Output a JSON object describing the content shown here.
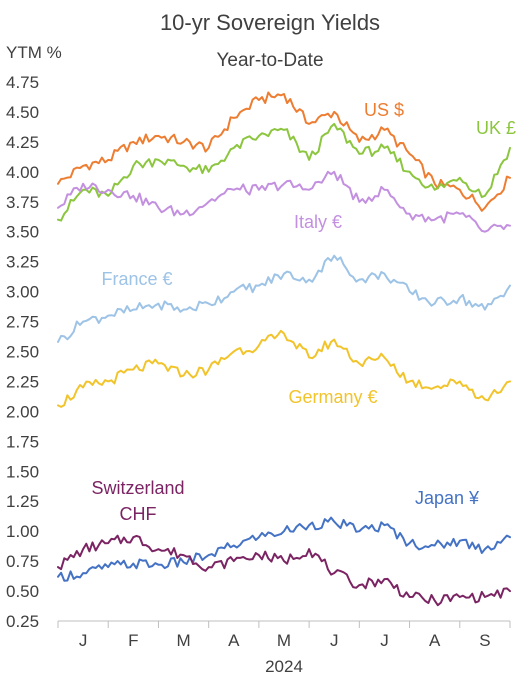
{
  "chart_data": {
    "type": "line",
    "title": "10-yr Sovereign Yields",
    "subtitle": "Year-to-Date",
    "ylabel": "YTM %",
    "xlabel": "2024",
    "ylim": [
      0.25,
      4.75
    ],
    "yticks": [
      "4.75",
      "4.50",
      "4.25",
      "4.00",
      "3.75",
      "3.50",
      "3.25",
      "3.00",
      "2.75",
      "2.50",
      "2.25",
      "2.00",
      "1.75",
      "1.50",
      "1.25",
      "1.00",
      "0.75",
      "0.50",
      "0.25"
    ],
    "ytick_values": [
      4.75,
      4.5,
      4.25,
      4.0,
      3.75,
      3.5,
      3.25,
      3.0,
      2.75,
      2.5,
      2.25,
      2.0,
      1.75,
      1.5,
      1.25,
      1.0,
      0.75,
      0.5,
      0.25
    ],
    "categories": [
      "J",
      "F",
      "M",
      "A",
      "M",
      "J",
      "J",
      "A",
      "S"
    ],
    "x": [
      0,
      0.5,
      1,
      1.5,
      2,
      2.5,
      3,
      3.5,
      4,
      4.5,
      5,
      5.5,
      6,
      6.5,
      7,
      7.5,
      8,
      8.5,
      9
    ],
    "xlim": [
      0,
      9
    ],
    "grid": false,
    "legend": "inline labels",
    "series": [
      {
        "name": "US $",
        "color": "#ed7d31",
        "values": [
          3.9,
          4.05,
          4.1,
          4.25,
          4.3,
          4.25,
          4.2,
          4.45,
          4.6,
          4.65,
          4.4,
          4.5,
          4.25,
          4.35,
          4.15,
          3.9,
          3.85,
          3.7,
          3.95
        ]
      },
      {
        "name": "UK £",
        "color": "#8cc63f",
        "values": [
          3.6,
          3.85,
          3.8,
          4.05,
          4.1,
          4.05,
          4.0,
          4.2,
          4.3,
          4.35,
          4.1,
          4.4,
          4.15,
          4.2,
          4.0,
          3.85,
          3.95,
          3.8,
          4.2
        ]
      },
      {
        "name": "Italy €",
        "color": "#c390e0",
        "values": [
          3.7,
          3.9,
          3.85,
          3.8,
          3.7,
          3.65,
          3.75,
          3.85,
          3.85,
          3.9,
          3.85,
          4.0,
          3.75,
          3.85,
          3.65,
          3.6,
          3.65,
          3.5,
          3.55
        ]
      },
      {
        "name": "France €",
        "color": "#9dc3e6",
        "values": [
          2.58,
          2.75,
          2.8,
          2.85,
          2.9,
          2.85,
          2.9,
          3.0,
          3.05,
          3.15,
          3.1,
          3.3,
          3.1,
          3.15,
          3.0,
          2.9,
          2.95,
          2.85,
          3.05
        ]
      },
      {
        "name": "Germany €",
        "color": "#f2c42b",
        "values": [
          2.05,
          2.2,
          2.25,
          2.35,
          2.4,
          2.3,
          2.35,
          2.5,
          2.55,
          2.65,
          2.45,
          2.6,
          2.4,
          2.45,
          2.25,
          2.2,
          2.25,
          2.1,
          2.25
        ]
      },
      {
        "name": "Japan ¥",
        "color": "#4472c4",
        "values": [
          0.62,
          0.65,
          0.7,
          0.73,
          0.72,
          0.74,
          0.8,
          0.88,
          0.95,
          1.0,
          1.05,
          1.08,
          1.0,
          1.05,
          0.9,
          0.88,
          0.92,
          0.85,
          0.95
        ]
      },
      {
        "name": "Switzerland CHF",
        "color": "#7b2463",
        "values": [
          0.7,
          0.85,
          0.9,
          0.95,
          0.85,
          0.8,
          0.7,
          0.75,
          0.8,
          0.75,
          0.85,
          0.65,
          0.55,
          0.6,
          0.45,
          0.42,
          0.45,
          0.45,
          0.5
        ]
      }
    ]
  }
}
